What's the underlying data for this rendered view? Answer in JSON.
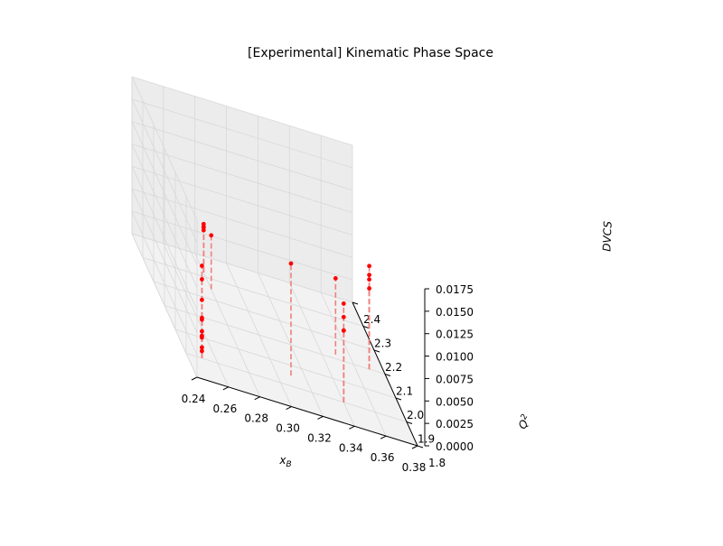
{
  "chart_data": {
    "type": "scatter",
    "projection": "3d",
    "title": "[Experimental] Kinematic Phase Space",
    "xlabel": "xB",
    "ylabel": "Q2",
    "zlabel": "DVCS",
    "xlim": [
      0.24,
      0.38
    ],
    "ylim": [
      1.8,
      2.4
    ],
    "zlim": [
      0.0,
      0.0175
    ],
    "x_ticks": [
      "0.24",
      "0.26",
      "0.28",
      "0.30",
      "0.32",
      "0.34",
      "0.36",
      "0.38"
    ],
    "y_ticks": [
      "1.8",
      "1.9",
      "2.0",
      "2.1",
      "2.2",
      "2.3",
      "2.4"
    ],
    "z_ticks": [
      "0.0000",
      "0.0025",
      "0.0050",
      "0.0075",
      "0.0100",
      "0.0125",
      "0.0150",
      "0.0175"
    ],
    "grid": true,
    "marker_color": "#ff0000",
    "stem_color": "#f08080",
    "stems": "dashed vertical lines from each point down to the z = 0 plane",
    "points": [
      {
        "x": 0.25,
        "y": 1.9,
        "z": 0.0103
      },
      {
        "x": 0.25,
        "y": 1.9,
        "z": 0.0088
      },
      {
        "x": 0.25,
        "y": 1.9,
        "z": 0.0065
      },
      {
        "x": 0.25,
        "y": 1.9,
        "z": 0.0045
      },
      {
        "x": 0.25,
        "y": 1.9,
        "z": 0.0043
      },
      {
        "x": 0.25,
        "y": 1.9,
        "z": 0.003
      },
      {
        "x": 0.25,
        "y": 1.9,
        "z": 0.0025
      },
      {
        "x": 0.25,
        "y": 1.9,
        "z": 0.0023
      },
      {
        "x": 0.25,
        "y": 1.9,
        "z": 0.0012
      },
      {
        "x": 0.25,
        "y": 1.9,
        "z": 0.0008
      },
      {
        "x": 0.28,
        "y": 2.25,
        "z": 0.006
      },
      {
        "x": 0.28,
        "y": 2.32,
        "z": 0.0054
      },
      {
        "x": 0.28,
        "y": 2.32,
        "z": 0.0051
      },
      {
        "x": 0.28,
        "y": 2.32,
        "z": 0.005
      },
      {
        "x": 0.28,
        "y": 2.32,
        "z": 0.0047
      },
      {
        "x": 0.31,
        "y": 1.95,
        "z": 0.0125
      },
      {
        "x": 0.34,
        "y": 1.9,
        "z": 0.0095
      },
      {
        "x": 0.34,
        "y": 1.9,
        "z": 0.011
      },
      {
        "x": 0.34,
        "y": 1.9,
        "z": 0.008
      },
      {
        "x": 0.35,
        "y": 2.12,
        "z": 0.0085
      },
      {
        "x": 0.34,
        "y": 1.9,
        "z": 0.008
      },
      {
        "x": 0.37,
        "y": 2.1,
        "z": 0.0115
      },
      {
        "x": 0.37,
        "y": 2.1,
        "z": 0.0105
      },
      {
        "x": 0.37,
        "y": 2.1,
        "z": 0.01
      },
      {
        "x": 0.37,
        "y": 2.1,
        "z": 0.009
      }
    ]
  }
}
